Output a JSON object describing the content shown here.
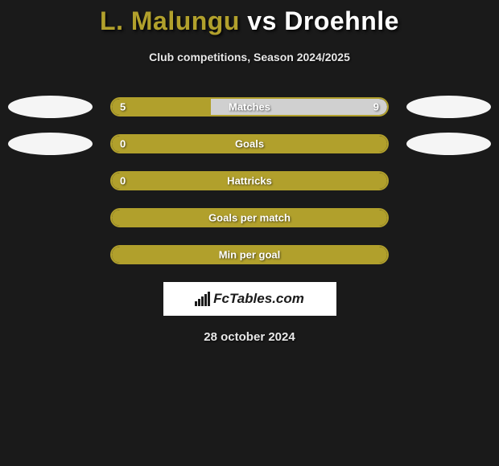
{
  "title": {
    "name1": "L. Malungu",
    "vs": "vs",
    "name2": "Droehnle"
  },
  "subtitle": "Club competitions, Season 2024/2025",
  "colors": {
    "accent": "#b1a02c",
    "background": "#1a1a1a",
    "neutral_fill": "#d0d0d0",
    "text": "#e8e8e8",
    "oval": "#f5f5f5"
  },
  "bars": [
    {
      "label": "Matches",
      "left_value": "5",
      "right_value": "9",
      "left_pct": 36,
      "right_pct": 64,
      "show_left_oval": true,
      "show_right_oval": true,
      "fill_style": "split"
    },
    {
      "label": "Goals",
      "left_value": "0",
      "right_value": "",
      "left_pct": 100,
      "right_pct": 0,
      "show_left_oval": true,
      "show_right_oval": true,
      "fill_style": "full"
    },
    {
      "label": "Hattricks",
      "left_value": "0",
      "right_value": "",
      "left_pct": 100,
      "right_pct": 0,
      "show_left_oval": false,
      "show_right_oval": false,
      "fill_style": "full"
    },
    {
      "label": "Goals per match",
      "left_value": "",
      "right_value": "",
      "left_pct": 100,
      "right_pct": 0,
      "show_left_oval": false,
      "show_right_oval": false,
      "fill_style": "full"
    },
    {
      "label": "Min per goal",
      "left_value": "",
      "right_value": "",
      "left_pct": 100,
      "right_pct": 0,
      "show_left_oval": false,
      "show_right_oval": false,
      "fill_style": "full"
    }
  ],
  "logo_text": "FcTables.com",
  "date": "28 october 2024"
}
